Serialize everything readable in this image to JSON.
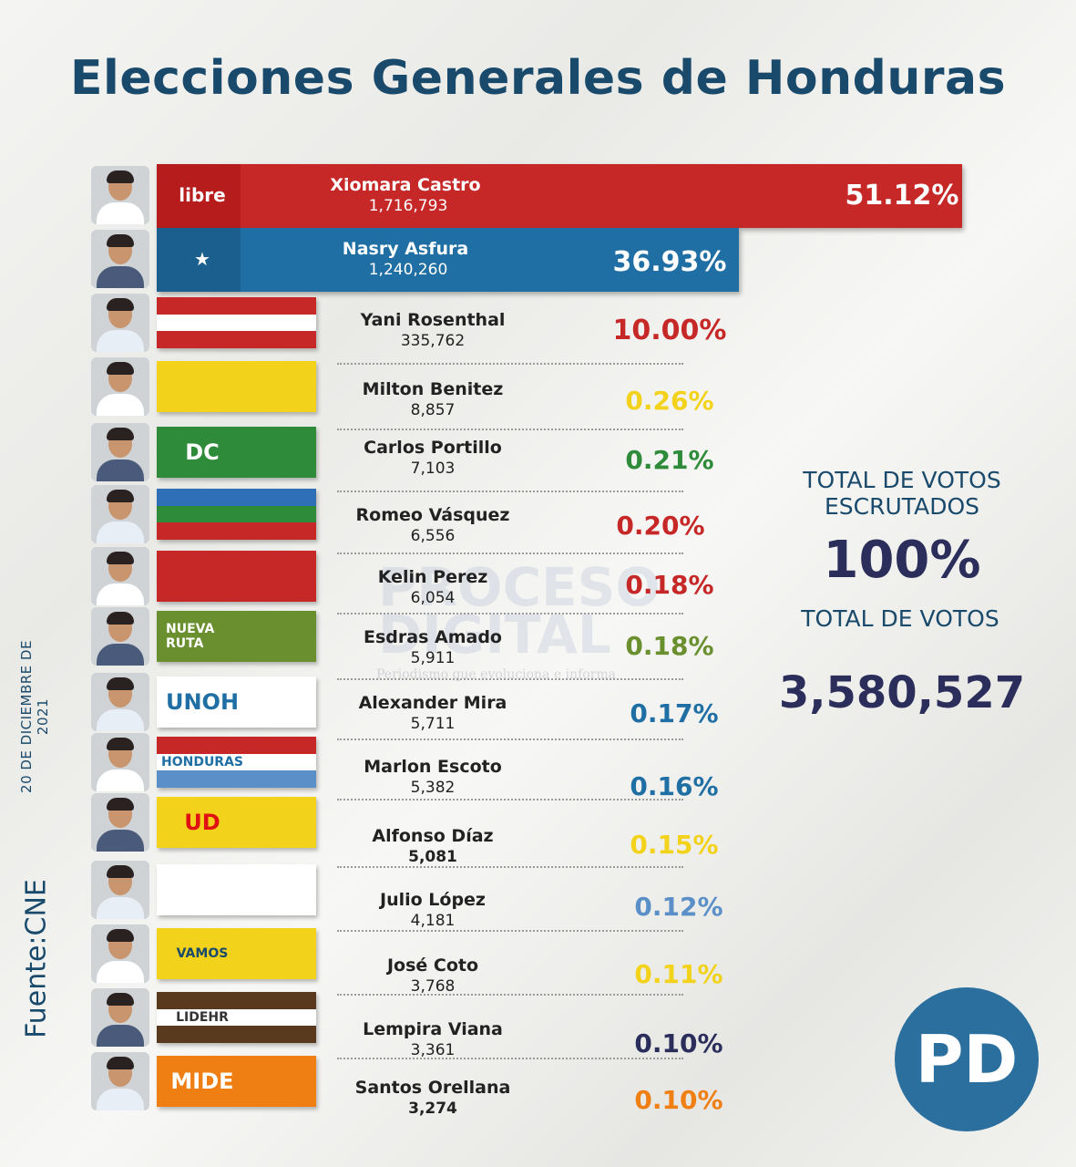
{
  "title": "Elecciones Generales de Honduras",
  "side_date": "20 DE DICIEMBRE DE 2021",
  "source": "Fuente:CNE",
  "watermark": {
    "line1": "PROCESO",
    "line2": "DIGITAL",
    "tagline": "Periodismo que evoluciona e informa"
  },
  "totals": {
    "escrutados_label": "TOTAL DE VOTOS ESCRUTADOS",
    "escrutados_value": "100%",
    "votos_label": "TOTAL DE VOTOS",
    "votos_value": "3,580,527"
  },
  "logo": "PD",
  "chart_data": {
    "type": "bar",
    "title": "Elecciones Generales de Honduras",
    "candidates": [
      {
        "name": "Xiomara Castro",
        "votes": "1,716,793",
        "percent": "51.12%",
        "value": 51.12,
        "party_label": "libre",
        "color": "#c62828"
      },
      {
        "name": "Nasry Asfura",
        "votes": "1,240,260",
        "percent": "36.93%",
        "value": 36.93,
        "party_label": "★",
        "color": "#1f6fa5"
      },
      {
        "name": "Yani Rosenthal",
        "votes": "335,762",
        "percent": "10.00%",
        "value": 10.0,
        "party_label": "",
        "color": "#c62828"
      },
      {
        "name": "Milton Benitez",
        "votes": "8,857",
        "percent": "0.26%",
        "value": 0.26,
        "party_label": "",
        "color": "#f2d21b"
      },
      {
        "name": "Carlos Portillo",
        "votes": "7,103",
        "percent": "0.21%",
        "value": 0.21,
        "party_label": "DC",
        "color": "#2e8b3a"
      },
      {
        "name": "Romeo Vásquez",
        "votes": "6,556",
        "percent": "0.20%",
        "value": 0.2,
        "party_label": "",
        "color": "#c62828"
      },
      {
        "name": "Kelin Perez",
        "votes": "6,054",
        "percent": "0.18%",
        "value": 0.18,
        "party_label": "",
        "color": "#c62828"
      },
      {
        "name": "Esdras Amado",
        "votes": "5,911",
        "percent": "0.18%",
        "value": 0.18,
        "party_label": "NUEVA RUTA",
        "color": "#6a8f2e"
      },
      {
        "name": "Alexander Mira",
        "votes": "5,711",
        "percent": "0.17%",
        "value": 0.17,
        "party_label": "UNOH",
        "color": "#1f6fa5"
      },
      {
        "name": "Marlon Escoto",
        "votes": "5,382",
        "percent": "0.16%",
        "value": 0.16,
        "party_label": "HONDURAS",
        "color": "#1f6fa5"
      },
      {
        "name": "Alfonso Díaz",
        "votes": "5,081",
        "percent": "0.15%",
        "value": 0.15,
        "party_label": "UD",
        "color": "#f2d21b"
      },
      {
        "name": "Julio López",
        "votes": "4,181",
        "percent": "0.12%",
        "value": 0.12,
        "party_label": "",
        "color": "#5b8fc8"
      },
      {
        "name": "José Coto",
        "votes": "3,768",
        "percent": "0.11%",
        "value": 0.11,
        "party_label": "VAMOS",
        "color": "#f2d21b"
      },
      {
        "name": "Lempira Viana",
        "votes": "3,361",
        "percent": "0.10%",
        "value": 0.1,
        "party_label": "LIDEHR",
        "color": "#2b2e5a"
      },
      {
        "name": "Santos Orellana",
        "votes": "3,274",
        "percent": "0.10%",
        "value": 0.1,
        "party_label": "MIDE",
        "color": "#f07f13"
      }
    ]
  }
}
